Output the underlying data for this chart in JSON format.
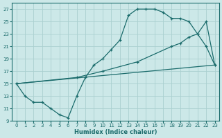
{
  "xlabel": "Humidex (Indice chaleur)",
  "bg_color": "#cce8e8",
  "line_color": "#1a6b6b",
  "grid_color": "#aad0d0",
  "xlim": [
    -0.5,
    23.5
  ],
  "ylim": [
    9,
    28
  ],
  "xticks": [
    0,
    1,
    2,
    3,
    4,
    5,
    6,
    7,
    8,
    9,
    10,
    11,
    12,
    13,
    14,
    15,
    16,
    17,
    18,
    19,
    20,
    21,
    22,
    23
  ],
  "yticks": [
    9,
    11,
    13,
    15,
    17,
    19,
    21,
    23,
    25,
    27
  ],
  "line1_x": [
    0,
    1,
    2,
    3,
    4,
    5,
    6,
    7,
    8,
    9,
    10,
    11,
    12,
    13,
    14,
    15,
    16,
    17,
    18,
    19,
    20,
    21,
    22,
    23
  ],
  "line1_y": [
    15,
    13,
    12,
    12,
    11,
    10,
    9.5,
    13,
    16,
    18,
    19,
    20.5,
    22,
    26,
    27,
    27,
    27,
    26.5,
    25.5,
    25.5,
    25,
    23,
    21,
    18
  ],
  "line2_x": [
    0,
    23
  ],
  "line2_y": [
    15,
    18
  ],
  "line3_x": [
    0,
    7,
    10,
    14,
    18,
    19,
    20,
    21,
    22,
    23
  ],
  "line3_y": [
    15,
    16,
    17,
    18.5,
    21,
    21.5,
    22.5,
    23,
    25,
    18
  ]
}
